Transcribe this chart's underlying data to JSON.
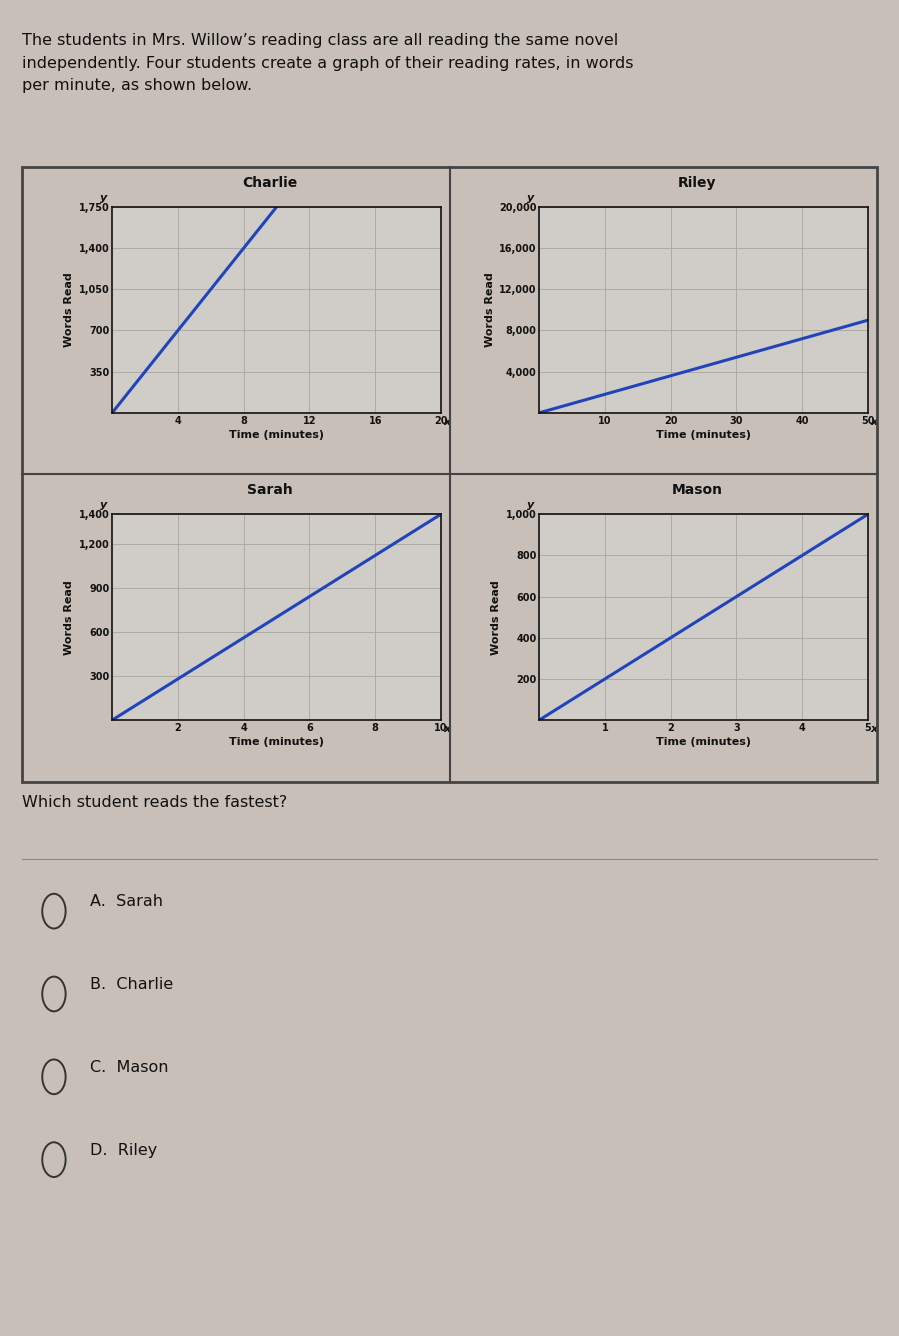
{
  "bg_color": "#c8c0b8",
  "plot_bg": "#d0ccc8",
  "grid_color": "#a8a4a0",
  "line_color": "#2244bb",
  "axis_color": "#111111",
  "text_color": "#111111",
  "border_color": "#444444",
  "header_text": "The students in Mrs. Willow’s reading class are all reading the same novel\nindependently. Four students create a graph of their reading rates, in words\nper minute, as shown below.",
  "question_text": "Which student reads the fastest?",
  "options": [
    "A.  Sarah",
    "B.  Charlie",
    "C.  Mason",
    "D.  Riley"
  ],
  "charlie": {
    "title": "Charlie",
    "xlabel": "Time (minutes)",
    "ylabel": "Words Read",
    "x": [
      0,
      10
    ],
    "y": [
      0,
      1750
    ],
    "xlim": [
      0,
      20
    ],
    "ylim": [
      0,
      1750
    ],
    "xticks": [
      4,
      8,
      12,
      16,
      20
    ],
    "yticks": [
      350,
      700,
      1050,
      1400,
      1750
    ],
    "ytick_labels": [
      "350",
      "700",
      "1,050",
      "1,400",
      "1,750"
    ]
  },
  "riley": {
    "title": "Riley",
    "xlabel": "Time (minutes)",
    "ylabel": "Words Read",
    "x": [
      0,
      50
    ],
    "y": [
      0,
      9000
    ],
    "xlim": [
      0,
      50
    ],
    "ylim": [
      0,
      20000
    ],
    "xticks": [
      10,
      20,
      30,
      40,
      50
    ],
    "yticks": [
      4000,
      8000,
      12000,
      16000,
      20000
    ],
    "ytick_labels": [
      "4,000",
      "8,000",
      "12,000",
      "16,000",
      "20,000"
    ]
  },
  "sarah": {
    "title": "Sarah",
    "xlabel": "Time (minutes)",
    "ylabel": "Words Read",
    "x": [
      0,
      10
    ],
    "y": [
      0,
      1400
    ],
    "xlim": [
      0,
      10
    ],
    "ylim": [
      0,
      1400
    ],
    "xticks": [
      2,
      4,
      6,
      8,
      10
    ],
    "yticks": [
      300,
      600,
      900,
      1200,
      1400
    ],
    "ytick_labels": [
      "300",
      "600",
      "900",
      "1,200",
      "1,400"
    ]
  },
  "mason": {
    "title": "Mason",
    "xlabel": "Time (minutes)",
    "ylabel": "Words Read",
    "x": [
      0,
      5
    ],
    "y": [
      0,
      1000
    ],
    "xlim": [
      0,
      5
    ],
    "ylim": [
      0,
      1000
    ],
    "xticks": [
      1,
      2,
      3,
      4,
      5
    ],
    "yticks": [
      200,
      400,
      600,
      800,
      1000
    ],
    "ytick_labels": [
      "200",
      "400",
      "600",
      "800",
      "1,000"
    ]
  }
}
